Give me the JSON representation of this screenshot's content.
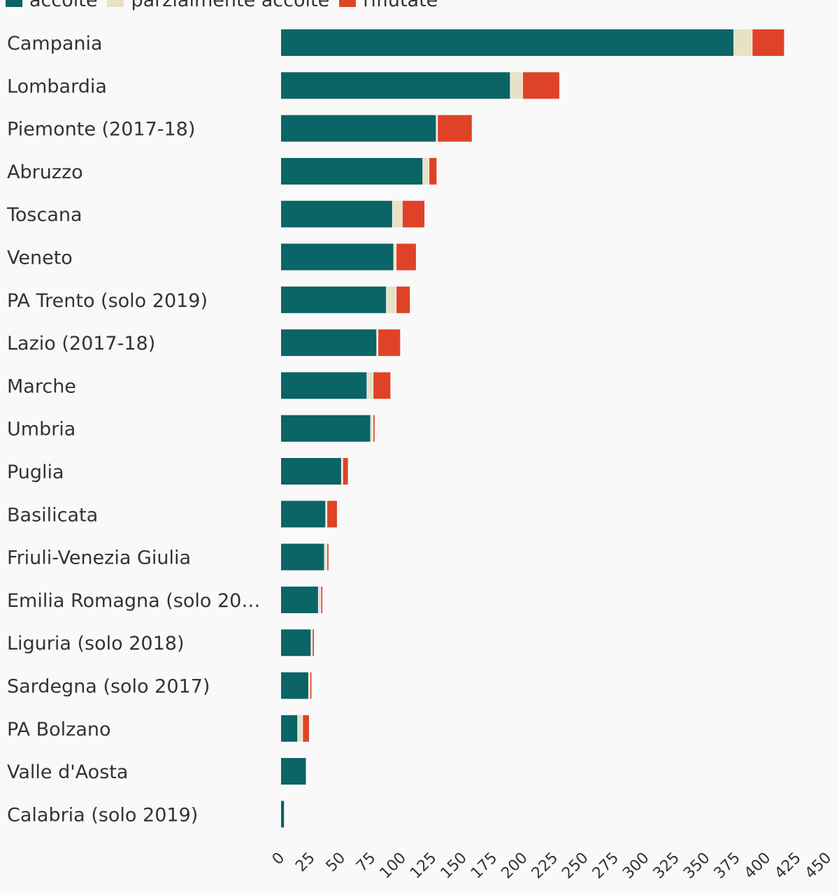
{
  "chart_data": {
    "type": "bar",
    "orientation": "horizontal",
    "stacked": true,
    "title": "",
    "xlabel": "",
    "ylabel": "",
    "xlim": [
      0,
      450
    ],
    "x_ticks": [
      "0",
      "25",
      "50",
      "75",
      "100",
      "125",
      "150",
      "175",
      "200",
      "225",
      "250",
      "275",
      "300",
      "325",
      "350",
      "375",
      "400",
      "425",
      "450"
    ],
    "grid": false,
    "legend_position": "top-left",
    "categories": [
      "Campania",
      "Lombardia",
      "Piemonte (2017-18)",
      "Abruzzo",
      "Toscana",
      "Veneto",
      "PA Trento (solo 2019)",
      "Lazio (2017-18)",
      "Marche",
      "Umbria",
      "Puglia",
      "Basilicata",
      "Friuli-Venezia Giulia",
      "Emilia Romagna (solo 20…",
      "Liguria (solo 2018)",
      "Sardegna (solo 2017)",
      "PA Bolzano",
      "Valle d'Aosta",
      "Calabria (solo 2019)"
    ],
    "series": [
      {
        "name": "accolte",
        "color": "#0b6465",
        "values": [
          373,
          189,
          128,
          117,
          92,
          93,
          87,
          79,
          71,
          74,
          50,
          37,
          36,
          31,
          25,
          23,
          14,
          21,
          3
        ]
      },
      {
        "name": "parzialmente accolte",
        "color": "#e6e2c3",
        "values": [
          15,
          10,
          1,
          5,
          8,
          2,
          8,
          1,
          5,
          2,
          1,
          1,
          2,
          2,
          1,
          1,
          4,
          0,
          0
        ]
      },
      {
        "name": "rifiutate",
        "color": "#df4327",
        "values": [
          26,
          30,
          28,
          6,
          18,
          16,
          11,
          18,
          14,
          1,
          4,
          8,
          1,
          1,
          1,
          1,
          5,
          0,
          0
        ]
      }
    ]
  }
}
